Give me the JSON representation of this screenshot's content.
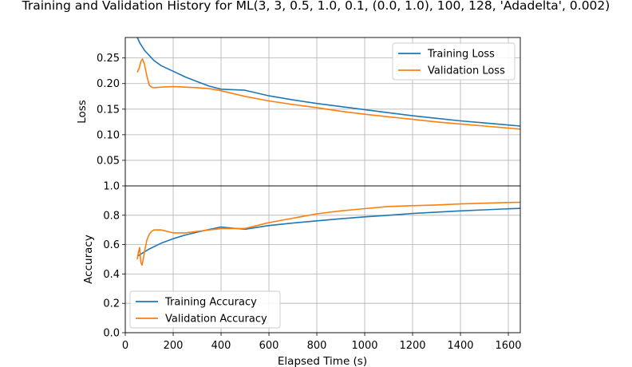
{
  "title": "Training and Validation History for ML(3, 3, 0.5, 1.0, 0.1, (0.0, 1.0), 100, 128, 'Adadelta', 0.002)",
  "colors": {
    "training": "#1f77b4",
    "validation": "#ff7f0e",
    "grid": "#b0b0b0"
  },
  "chart_data": [
    {
      "type": "line",
      "ylabel": "Loss",
      "xlim": [
        0,
        1650
      ],
      "ylim": [
        0,
        0.29
      ],
      "yticks": [
        "0.05",
        "0.10",
        "0.15",
        "0.20",
        "0.25"
      ],
      "ytick_values": [
        0.05,
        0.1,
        0.15,
        0.2,
        0.25
      ],
      "grid": true,
      "legend": "top-right",
      "series": [
        {
          "name": "Training Loss",
          "x": [
            50,
            60,
            80,
            100,
            120,
            150,
            200,
            250,
            300,
            350,
            400,
            450,
            500,
            600,
            700,
            800,
            900,
            1000,
            1100,
            1200,
            1300,
            1400,
            1500,
            1600,
            1650
          ],
          "y": [
            0.29,
            0.28,
            0.265,
            0.255,
            0.245,
            0.235,
            0.224,
            0.213,
            0.204,
            0.195,
            0.189,
            0.188,
            0.187,
            0.176,
            0.168,
            0.161,
            0.155,
            0.149,
            0.143,
            0.137,
            0.132,
            0.127,
            0.123,
            0.119,
            0.117
          ]
        },
        {
          "name": "Validation Loss",
          "x": [
            50,
            58,
            65,
            72,
            80,
            90,
            100,
            110,
            120,
            150,
            200,
            250,
            300,
            350,
            400,
            500,
            600,
            700,
            800,
            900,
            1000,
            1100,
            1200,
            1300,
            1400,
            1500,
            1600,
            1650
          ],
          "y": [
            0.222,
            0.23,
            0.243,
            0.248,
            0.238,
            0.215,
            0.197,
            0.193,
            0.192,
            0.193,
            0.194,
            0.193,
            0.192,
            0.19,
            0.186,
            0.175,
            0.166,
            0.159,
            0.153,
            0.146,
            0.14,
            0.135,
            0.13,
            0.125,
            0.121,
            0.117,
            0.113,
            0.111
          ]
        }
      ]
    },
    {
      "type": "line",
      "ylabel": "Accuracy",
      "xlabel": "Elapsed Time (s)",
      "xlim": [
        0,
        1650
      ],
      "ylim": [
        0,
        1.0
      ],
      "xticks": [
        "0",
        "200",
        "400",
        "600",
        "800",
        "1000",
        "1200",
        "1400",
        "1600"
      ],
      "xtick_values": [
        0,
        200,
        400,
        600,
        800,
        1000,
        1200,
        1400,
        1600
      ],
      "yticks": [
        "0.0",
        "0.2",
        "0.4",
        "0.6",
        "0.8",
        "1.0"
      ],
      "ytick_values": [
        0.0,
        0.2,
        0.4,
        0.6,
        0.8,
        1.0
      ],
      "grid": true,
      "legend": "bottom-left",
      "series": [
        {
          "name": "Training Accuracy",
          "x": [
            50,
            70,
            100,
            150,
            200,
            250,
            300,
            350,
            400,
            450,
            500,
            600,
            700,
            800,
            900,
            1000,
            1100,
            1200,
            1300,
            1400,
            1500,
            1600,
            1650
          ],
          "y": [
            0.52,
            0.54,
            0.57,
            0.61,
            0.64,
            0.665,
            0.685,
            0.703,
            0.72,
            0.712,
            0.705,
            0.73,
            0.747,
            0.762,
            0.776,
            0.789,
            0.8,
            0.812,
            0.821,
            0.83,
            0.837,
            0.844,
            0.847
          ]
        },
        {
          "name": "Validation Accuracy",
          "x": [
            50,
            55,
            60,
            65,
            70,
            75,
            80,
            90,
            100,
            110,
            120,
            150,
            200,
            250,
            300,
            350,
            400,
            450,
            500,
            550,
            600,
            700,
            800,
            900,
            1000,
            1100,
            1200,
            1300,
            1400,
            1500,
            1600,
            1650
          ],
          "y": [
            0.5,
            0.55,
            0.58,
            0.48,
            0.46,
            0.5,
            0.55,
            0.63,
            0.67,
            0.69,
            0.7,
            0.7,
            0.68,
            0.68,
            0.69,
            0.7,
            0.71,
            0.71,
            0.71,
            0.73,
            0.75,
            0.78,
            0.81,
            0.83,
            0.845,
            0.86,
            0.865,
            0.87,
            0.877,
            0.882,
            0.887,
            0.888
          ]
        }
      ]
    }
  ]
}
